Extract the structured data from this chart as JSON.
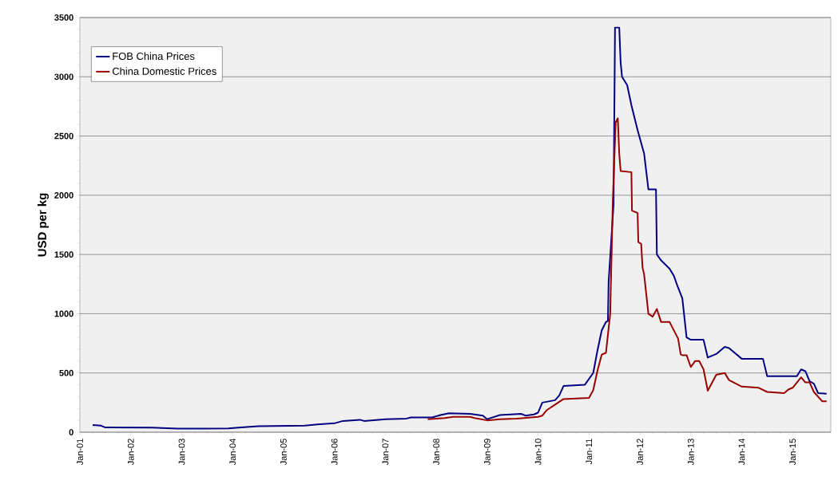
{
  "chart_data": {
    "type": "line",
    "ylabel": "USD per kg",
    "xlim": [
      "2001-01",
      "2015-10"
    ],
    "ylim": [
      0,
      3500
    ],
    "xticks": [
      {
        "value": "2001-01",
        "label": "Jan-01"
      },
      {
        "value": "2002-01",
        "label": "Jan-02"
      },
      {
        "value": "2003-01",
        "label": "Jan-03"
      },
      {
        "value": "2004-01",
        "label": "Jan-04"
      },
      {
        "value": "2005-01",
        "label": "Jan-05"
      },
      {
        "value": "2006-01",
        "label": "Jan-06"
      },
      {
        "value": "2007-01",
        "label": "Jan-07"
      },
      {
        "value": "2008-01",
        "label": "Jan-08"
      },
      {
        "value": "2009-01",
        "label": "Jan-09"
      },
      {
        "value": "2010-01",
        "label": "Jan-10"
      },
      {
        "value": "2011-01",
        "label": "Jan-11"
      },
      {
        "value": "2012-01",
        "label": "Jan-12"
      },
      {
        "value": "2013-01",
        "label": "Jan-13"
      },
      {
        "value": "2014-01",
        "label": "Jan-14"
      },
      {
        "value": "2015-01",
        "label": "Jan-15"
      }
    ],
    "yticks": [
      0,
      500,
      1000,
      1500,
      2000,
      2500,
      3000,
      3500
    ],
    "grid": "y",
    "legend": "top left",
    "marker": "none",
    "line_style": "solid",
    "series": [
      {
        "name": "FOB China Prices",
        "color": "#000080",
        "x": [
          "2001-04",
          "2001-06",
          "2001-07",
          "2002-06",
          "2002-12",
          "2003-12",
          "2004-03",
          "2004-07",
          "2005-06",
          "2005-09",
          "2006-01",
          "2006-03",
          "2006-07",
          "2006-08",
          "2007-01",
          "2007-06",
          "2007-07",
          "2007-12",
          "2008-02",
          "2008-04",
          "2008-09",
          "2008-12",
          "2009-01",
          "2009-04",
          "2009-09",
          "2009-10",
          "2009-12",
          "2010-01",
          "2010-02",
          "2010-05",
          "2010-06",
          "2010-07",
          "2010-12",
          "2011-02",
          "2011-03",
          "2011-04",
          "2011-05",
          "2011-05-15",
          "2011-05-20",
          "2011-06-25",
          "2011-07-01",
          "2011-07-05",
          "2011-08-05",
          "2011-08-15",
          "2011-08-25",
          "2011-10",
          "2011-11",
          "2011-12-15",
          "2012-02",
          "2012-03",
          "2012-04-25",
          "2012-05",
          "2012-06",
          "2012-08",
          "2012-09",
          "2012-10",
          "2012-11",
          "2012-12",
          "2013-01",
          "2013-04",
          "2013-05",
          "2013-07",
          "2013-09",
          "2013-10",
          "2014-01",
          "2014-06",
          "2014-07",
          "2015-02",
          "2015-03",
          "2015-04",
          "2015-05",
          "2015-06",
          "2015-07",
          "2015-09"
        ],
        "values": [
          60,
          55,
          40,
          38,
          30,
          32,
          40,
          50,
          55,
          65,
          75,
          95,
          105,
          95,
          110,
          115,
          125,
          125,
          145,
          160,
          155,
          140,
          110,
          145,
          155,
          140,
          150,
          165,
          250,
          270,
          310,
          390,
          400,
          500,
          690,
          860,
          930,
          940,
          1270,
          1920,
          2810,
          3415,
          3415,
          3120,
          3000,
          2930,
          2760,
          2550,
          2350,
          2050,
          2050,
          1500,
          1450,
          1380,
          1320,
          1220,
          1130,
          800,
          780,
          780,
          630,
          660,
          720,
          710,
          620,
          620,
          473,
          473,
          530,
          515,
          430,
          410,
          330,
          325
        ]
      },
      {
        "name": "China Domestic Prices",
        "color": "#990000",
        "x": [
          "2007-11",
          "2008-03",
          "2008-05",
          "2008-09",
          "2008-10",
          "2009-01",
          "2009-04",
          "2009-08",
          "2010-01",
          "2010-02",
          "2010-03",
          "2010-07",
          "2011-01",
          "2011-02",
          "2011-03",
          "2011-04",
          "2011-05",
          "2011-06",
          "2011-06-20",
          "2011-07-10",
          "2011-07-25",
          "2011-08-05",
          "2011-08-15",
          "2011-11-01",
          "2011-11-05",
          "2011-12-15",
          "2011-12-20",
          "2012-01-10",
          "2012-01-20",
          "2012-02",
          "2012-03",
          "2012-04",
          "2012-05",
          "2012-06",
          "2012-08",
          "2012-10",
          "2012-10-20",
          "2012-11",
          "2012-12",
          "2013-01",
          "2013-02",
          "2013-03",
          "2013-04",
          "2013-05",
          "2013-07",
          "2013-09",
          "2013-10",
          "2014-01",
          "2014-05",
          "2014-07",
          "2014-11",
          "2014-12",
          "2015-01",
          "2015-03",
          "2015-04",
          "2015-05",
          "2015-06",
          "2015-08",
          "2015-09"
        ],
        "values": [
          110,
          120,
          130,
          130,
          120,
          100,
          110,
          115,
          130,
          140,
          185,
          280,
          290,
          355,
          520,
          655,
          670,
          1000,
          1965,
          2615,
          2650,
          2350,
          2205,
          2195,
          1870,
          1850,
          1605,
          1590,
          1390,
          1330,
          1000,
          975,
          1040,
          930,
          930,
          790,
          655,
          650,
          650,
          550,
          600,
          600,
          530,
          350,
          485,
          500,
          440,
          385,
          375,
          340,
          330,
          360,
          375,
          463,
          420,
          420,
          340,
          260,
          260
        ]
      }
    ]
  }
}
